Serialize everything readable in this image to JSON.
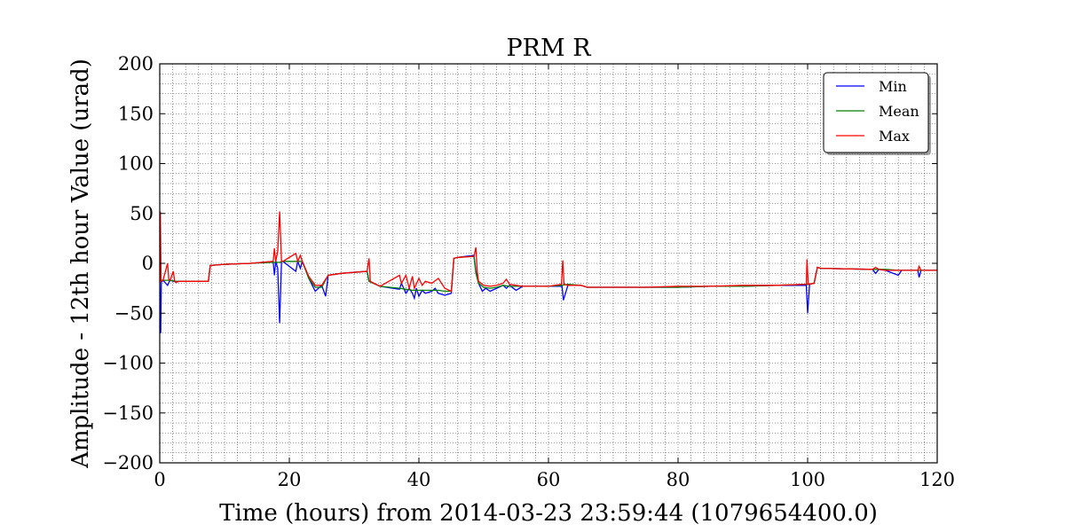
{
  "chart_data": {
    "type": "line",
    "title": "PRM R",
    "xlabel": "Time (hours) from 2014-03-23 23:59:44 (1079654400.0)",
    "ylabel": "Amplitude - 12th hour Value (urad)",
    "xlim": [
      0,
      120
    ],
    "ylim": [
      -200,
      200
    ],
    "xticks": [
      0,
      20,
      40,
      60,
      80,
      100,
      120
    ],
    "yticks": [
      -200,
      -150,
      -100,
      -50,
      0,
      50,
      100,
      150,
      200
    ],
    "xtick_labels": [
      "0",
      "20",
      "40",
      "60",
      "80",
      "100",
      "120"
    ],
    "ytick_labels": [
      "−200",
      "−150",
      "−100",
      "−50",
      "0",
      "50",
      "100",
      "150",
      "200"
    ],
    "grid": true,
    "legend_position": "top-right",
    "series": [
      {
        "name": "Min",
        "color": "#0000ff",
        "x": [
          0,
          0.15,
          0.25,
          0.35,
          0.5,
          1.2,
          1.5,
          1.7,
          2.1,
          2.3,
          2.5,
          3,
          7.5,
          7.8,
          10,
          14,
          17.5,
          17.7,
          17.9,
          18.2,
          18.5,
          18.8,
          19,
          21,
          21.3,
          21.7,
          22,
          23,
          24,
          25,
          25.6,
          26,
          28,
          32,
          32.3,
          34,
          37,
          37.3,
          38,
          38.5,
          39,
          39.3,
          39.6,
          40,
          40.5,
          41,
          42,
          42.5,
          43,
          44,
          45,
          45.4,
          46,
          48.5,
          48.8,
          49.2,
          49.8,
          50.3,
          51,
          52,
          53,
          53.5,
          54,
          55,
          56,
          60,
          62.1,
          62.3,
          63,
          65,
          66,
          70,
          75,
          80,
          85,
          90,
          95,
          99.8,
          100,
          100.3,
          101,
          101.5,
          102,
          110,
          110.5,
          111,
          112,
          114,
          114.5,
          115,
          117,
          117.2,
          117.5,
          120
        ],
        "values": [
          -17,
          -70,
          -18,
          -18,
          -17,
          -22,
          -18,
          -17,
          -18,
          -18,
          -19,
          -18,
          -18,
          -2,
          -1,
          0,
          2,
          -12,
          2,
          -5,
          -60,
          2,
          2,
          -8,
          2,
          -5,
          2,
          -15,
          -28,
          -22,
          -33,
          -12,
          -10,
          -8,
          -18,
          -23,
          -26,
          -20,
          -30,
          -25,
          -30,
          -35,
          -25,
          -33,
          -27,
          -30,
          -28,
          -25,
          -30,
          -32,
          -30,
          5,
          6,
          8,
          -8,
          -20,
          -28,
          -25,
          -28,
          -25,
          -22,
          -25,
          -22,
          -27,
          -23,
          -23,
          -23,
          -37,
          -22,
          -22,
          -24,
          -24,
          -24,
          -24,
          -23,
          -23,
          -22,
          -22,
          -50,
          -21,
          -20,
          -4,
          -5,
          -6,
          -10,
          -6,
          -7,
          -12,
          -7,
          -7,
          -7,
          -14,
          -7,
          -7
        ]
      },
      {
        "name": "Mean",
        "color": "#008000",
        "x": [
          0,
          0.5,
          1.5,
          2.5,
          3,
          7.5,
          7.8,
          10,
          14,
          17.5,
          18.5,
          19,
          21,
          22,
          23,
          24,
          25,
          26,
          28,
          32,
          32.3,
          34,
          37,
          38,
          39,
          40,
          41,
          42,
          43,
          44,
          45,
          45.4,
          46,
          48.5,
          48.8,
          49.2,
          50,
          51,
          52,
          53,
          54,
          55,
          56,
          60,
          62,
          63,
          65,
          66,
          70,
          75,
          80,
          85,
          90,
          95,
          100,
          101,
          101.5,
          102,
          110,
          112,
          114,
          115,
          117,
          120
        ],
        "values": [
          -17,
          -17,
          -17,
          -18,
          -18,
          -18,
          -2,
          -1,
          0,
          1,
          1,
          2,
          2,
          2,
          -15,
          -24,
          -24,
          -12,
          -10,
          -8,
          -18,
          -23,
          -25,
          -26,
          -27,
          -27,
          -27,
          -27,
          -27,
          -28,
          -28,
          5,
          6,
          7,
          -10,
          -20,
          -24,
          -25,
          -24,
          -22,
          -23,
          -23,
          -23,
          -23,
          -22,
          -21,
          -22,
          -24,
          -24,
          -24,
          -24,
          -23,
          -23,
          -22,
          -21,
          -20,
          -4,
          -5,
          -6,
          -6,
          -7,
          -7,
          -7,
          -7
        ]
      },
      {
        "name": "Max",
        "color": "#ff0000",
        "x": [
          0,
          0.1,
          0.2,
          0.35,
          0.5,
          1.2,
          1.4,
          1.6,
          2.1,
          2.3,
          2.5,
          3,
          7.5,
          7.8,
          10,
          14,
          17.5,
          17.7,
          17.9,
          18.2,
          18.5,
          18.8,
          19,
          21,
          21.3,
          21.7,
          22,
          23,
          24,
          25,
          26,
          28,
          32,
          32.3,
          32.5,
          34,
          37,
          37.3,
          38,
          38.5,
          39,
          39.3,
          40,
          40.5,
          41,
          42,
          43,
          44,
          45,
          45.4,
          46,
          48.5,
          48.8,
          49,
          49.2,
          50,
          51,
          52,
          53,
          53.5,
          54,
          55,
          56,
          60,
          62,
          62.2,
          62.4,
          63,
          65,
          66,
          70,
          75,
          80,
          85,
          90,
          95,
          99.8,
          99.9,
          100.1,
          101,
          101.5,
          102,
          110,
          110.5,
          111,
          112,
          114,
          115,
          117,
          117.2,
          117.5,
          120
        ],
        "values": [
          -17,
          52,
          -18,
          -17,
          -17,
          0,
          -16,
          -17,
          -8,
          -18,
          -19,
          -18,
          -18,
          -2,
          -1,
          0,
          2,
          15,
          2,
          12,
          52,
          2,
          2,
          10,
          2,
          8,
          2,
          -13,
          -22,
          -22,
          -12,
          -10,
          -8,
          5,
          -18,
          -23,
          -12,
          -20,
          -12,
          -25,
          -13,
          -25,
          -15,
          -22,
          -18,
          -20,
          -15,
          -25,
          -28,
          5,
          6,
          7,
          16,
          -8,
          -18,
          -22,
          -23,
          -22,
          -20,
          -16,
          -21,
          -22,
          -23,
          -23,
          -21,
          3,
          -21,
          -22,
          -22,
          -24,
          -24,
          -24,
          -23,
          -23,
          -22,
          -22,
          -21,
          4,
          -21,
          -20,
          -4,
          -5,
          -6,
          -4,
          -6,
          -7,
          -7,
          -7,
          -7,
          -3,
          -7,
          -7
        ]
      }
    ]
  }
}
